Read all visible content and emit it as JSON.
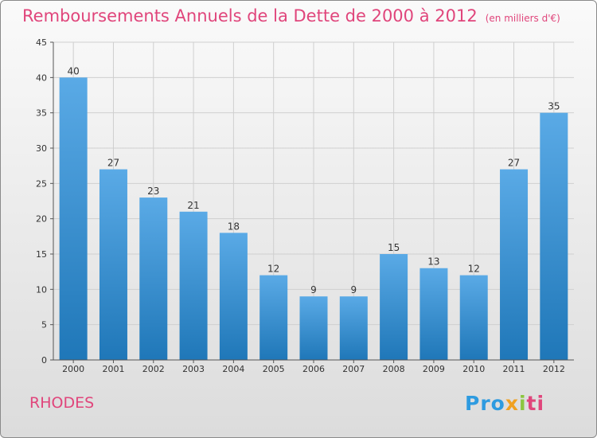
{
  "title": "Remboursements Annuels de la Dette de 2000 à 2012",
  "unit": "(en milliers d'€)",
  "commune": "RHODES",
  "logo": {
    "p1": "Pro",
    "p2": "x",
    "p3": "i",
    "p4": "ti"
  },
  "colors": {
    "title": "#e0457b",
    "bar_light": "#5aaae6",
    "bar_dark": "#1f77b8",
    "grid": "#cfcfcf"
  },
  "chart_data": {
    "type": "bar",
    "title": "Remboursements Annuels de la Dette de 2000 à 2012",
    "xlabel": "",
    "ylabel": "",
    "categories": [
      "2000",
      "2001",
      "2002",
      "2003",
      "2004",
      "2005",
      "2006",
      "2007",
      "2008",
      "2009",
      "2010",
      "2011",
      "2012"
    ],
    "values": [
      40,
      27,
      23,
      21,
      18,
      12,
      9,
      9,
      15,
      13,
      12,
      27,
      35
    ],
    "ylim": [
      0,
      45
    ],
    "yticks": [
      0,
      5,
      10,
      15,
      20,
      25,
      30,
      35,
      40,
      45
    ],
    "grid": true,
    "data_labels": true
  }
}
